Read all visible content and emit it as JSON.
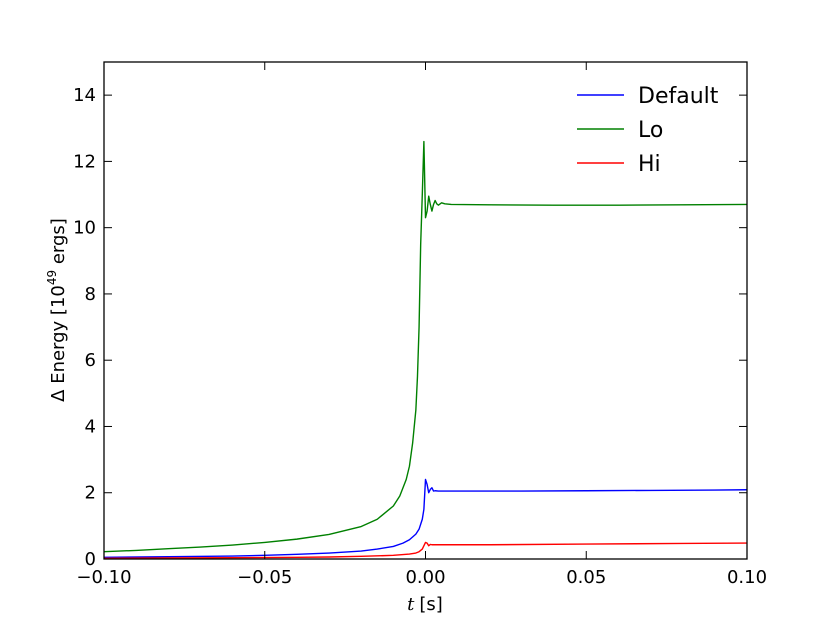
{
  "chart_data": {
    "type": "line",
    "xlabel": {
      "symbol": "t",
      "unit": "[s]"
    },
    "ylabel": {
      "prefix": "Δ Energy [10",
      "exponent": "49",
      "suffix": " ergs]"
    },
    "xlim": [
      -0.1,
      0.1
    ],
    "ylim": [
      0,
      15
    ],
    "xticks": [
      -0.1,
      -0.05,
      0.0,
      0.05,
      0.1
    ],
    "xtick_labels": [
      "−0.10",
      "−0.05",
      "0.00",
      "0.05",
      "0.10"
    ],
    "yticks": [
      0,
      2,
      4,
      6,
      8,
      10,
      12,
      14
    ],
    "ytick_labels": [
      "0",
      "2",
      "4",
      "6",
      "8",
      "10",
      "12",
      "14"
    ],
    "grid": false,
    "legend_position": "top-right",
    "series": [
      {
        "name": "Default",
        "color": "#0000ff",
        "points": [
          [
            -0.1,
            0.05
          ],
          [
            -0.08,
            0.07
          ],
          [
            -0.06,
            0.09
          ],
          [
            -0.05,
            0.11
          ],
          [
            -0.04,
            0.14
          ],
          [
            -0.03,
            0.18
          ],
          [
            -0.02,
            0.24
          ],
          [
            -0.015,
            0.3
          ],
          [
            -0.01,
            0.38
          ],
          [
            -0.007,
            0.48
          ],
          [
            -0.005,
            0.58
          ],
          [
            -0.003,
            0.75
          ],
          [
            -0.002,
            0.9
          ],
          [
            -0.001,
            1.2
          ],
          [
            -0.0005,
            1.5
          ],
          [
            0.0,
            2.4
          ],
          [
            0.0005,
            2.25
          ],
          [
            0.001,
            2.0
          ],
          [
            0.0015,
            2.1
          ],
          [
            0.002,
            2.15
          ],
          [
            0.0025,
            2.05
          ],
          [
            0.003,
            2.06
          ],
          [
            0.004,
            2.05
          ],
          [
            0.006,
            2.05
          ],
          [
            0.01,
            2.05
          ],
          [
            0.03,
            2.05
          ],
          [
            0.05,
            2.06
          ],
          [
            0.07,
            2.07
          ],
          [
            0.09,
            2.08
          ],
          [
            0.1,
            2.09
          ]
        ]
      },
      {
        "name": "Lo",
        "color": "#008000",
        "points": [
          [
            -0.1,
            0.22
          ],
          [
            -0.09,
            0.26
          ],
          [
            -0.08,
            0.31
          ],
          [
            -0.07,
            0.36
          ],
          [
            -0.06,
            0.42
          ],
          [
            -0.05,
            0.5
          ],
          [
            -0.04,
            0.6
          ],
          [
            -0.03,
            0.74
          ],
          [
            -0.02,
            0.98
          ],
          [
            -0.015,
            1.2
          ],
          [
            -0.01,
            1.6
          ],
          [
            -0.008,
            1.9
          ],
          [
            -0.006,
            2.4
          ],
          [
            -0.005,
            2.8
          ],
          [
            -0.004,
            3.5
          ],
          [
            -0.003,
            4.5
          ],
          [
            -0.0025,
            5.5
          ],
          [
            -0.002,
            7.0
          ],
          [
            -0.0015,
            9.5
          ],
          [
            -0.001,
            11.0
          ],
          [
            -0.0005,
            12.6
          ],
          [
            0.0,
            10.3
          ],
          [
            0.0005,
            10.5
          ],
          [
            0.001,
            10.95
          ],
          [
            0.0015,
            10.7
          ],
          [
            0.002,
            10.5
          ],
          [
            0.0025,
            10.7
          ],
          [
            0.003,
            10.82
          ],
          [
            0.0035,
            10.72
          ],
          [
            0.004,
            10.68
          ],
          [
            0.005,
            10.75
          ],
          [
            0.006,
            10.72
          ],
          [
            0.008,
            10.7
          ],
          [
            0.02,
            10.69
          ],
          [
            0.04,
            10.68
          ],
          [
            0.06,
            10.68
          ],
          [
            0.08,
            10.69
          ],
          [
            0.1,
            10.7
          ]
        ]
      },
      {
        "name": "Hi",
        "color": "#ff0000",
        "points": [
          [
            -0.1,
            0.02
          ],
          [
            -0.08,
            0.03
          ],
          [
            -0.06,
            0.04
          ],
          [
            -0.04,
            0.05
          ],
          [
            -0.03,
            0.06
          ],
          [
            -0.02,
            0.08
          ],
          [
            -0.01,
            0.11
          ],
          [
            -0.005,
            0.15
          ],
          [
            -0.003,
            0.18
          ],
          [
            -0.002,
            0.22
          ],
          [
            -0.001,
            0.3
          ],
          [
            0.0,
            0.5
          ],
          [
            0.0005,
            0.48
          ],
          [
            0.001,
            0.4
          ],
          [
            0.0015,
            0.44
          ],
          [
            0.002,
            0.43
          ],
          [
            0.004,
            0.43
          ],
          [
            0.02,
            0.43
          ],
          [
            0.05,
            0.45
          ],
          [
            0.08,
            0.47
          ],
          [
            0.1,
            0.48
          ]
        ]
      }
    ]
  }
}
